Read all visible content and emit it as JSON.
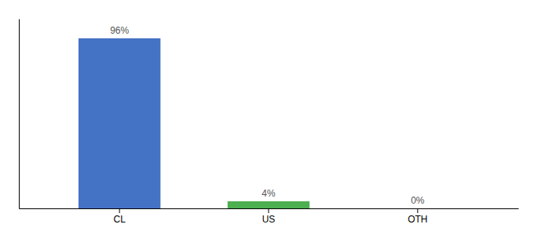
{
  "chart_data": {
    "type": "bar",
    "categories": [
      "CL",
      "US",
      "OTH"
    ],
    "values": [
      96,
      4,
      0
    ],
    "value_labels": [
      "96%",
      "4%",
      "0%"
    ],
    "colors": [
      "#4472c4",
      "#4CAF50",
      "#4472c4"
    ],
    "ylim": [
      0,
      107
    ],
    "data_labels": true,
    "tick_labels": "x",
    "grid": false
  }
}
